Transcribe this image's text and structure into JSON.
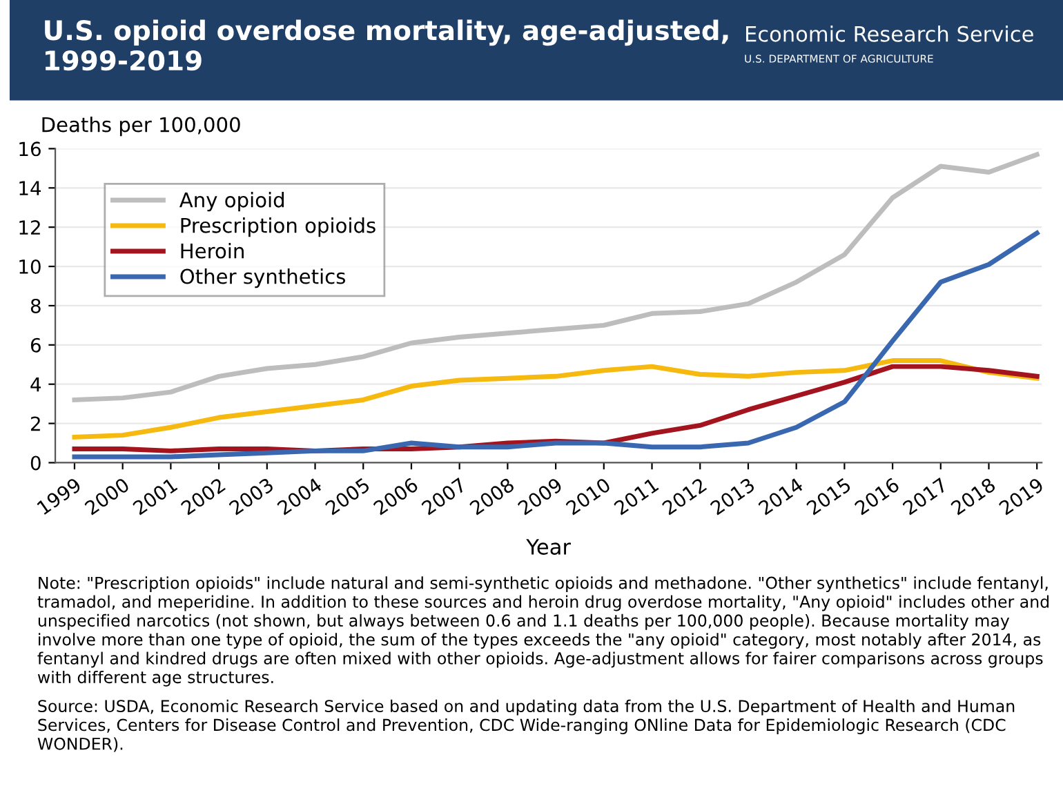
{
  "chart_data": {
    "type": "line",
    "title": "U.S. opioid overdose mortality, age-adjusted,\n1999-2019",
    "ylabel": "Deaths per 100,000",
    "xlabel": "Year",
    "categories": [
      "1999",
      "2000",
      "2001",
      "2002",
      "2003",
      "2004",
      "2005",
      "2006",
      "2007",
      "2008",
      "2009",
      "2010",
      "2011",
      "2012",
      "2013",
      "2014",
      "2015",
      "2016",
      "2017",
      "2018",
      "2019"
    ],
    "series": [
      {
        "name": "Any opioid",
        "color": "#bdbdbd",
        "values": [
          3.2,
          3.3,
          3.6,
          4.4,
          4.8,
          5.0,
          5.4,
          6.1,
          6.4,
          6.6,
          6.8,
          7.0,
          7.6,
          7.7,
          8.1,
          9.2,
          10.6,
          13.5,
          15.1,
          14.8,
          15.7
        ]
      },
      {
        "name": "Prescription opioids",
        "color": "#f5b90f",
        "values": [
          1.3,
          1.4,
          1.8,
          2.3,
          2.6,
          2.9,
          3.2,
          3.9,
          4.2,
          4.3,
          4.4,
          4.7,
          4.9,
          4.5,
          4.4,
          4.6,
          4.7,
          5.2,
          5.2,
          4.6,
          4.3
        ]
      },
      {
        "name": "Heroin",
        "color": "#a3141e",
        "values": [
          0.7,
          0.7,
          0.6,
          0.7,
          0.7,
          0.6,
          0.7,
          0.7,
          0.8,
          1.0,
          1.1,
          1.0,
          1.5,
          1.9,
          2.7,
          3.4,
          4.1,
          4.9,
          4.9,
          4.7,
          4.4
        ]
      },
      {
        "name": "Other synthetics",
        "color": "#3a68b0",
        "values": [
          0.3,
          0.3,
          0.3,
          0.4,
          0.5,
          0.6,
          0.6,
          1.0,
          0.8,
          0.8,
          1.0,
          1.0,
          0.8,
          0.8,
          1.0,
          1.8,
          3.1,
          6.2,
          9.2,
          10.1,
          11.7
        ]
      }
    ],
    "ylim": [
      0,
      16
    ],
    "yticks": [
      0,
      2,
      4,
      6,
      8,
      10,
      12,
      14,
      16
    ],
    "grid": "y",
    "legend": "top left",
    "marker": "none",
    "line_style": "solid",
    "annotations": [
      "Economic Research Service",
      "U.S. DEPARTMENT OF AGRICULTURE",
      "Note: \"Prescription opioids\" include natural and semi-synthetic opioids and methadone. \"Other synthetics\" include fentanyl, tramadol, and meperidine. In addition to these sources and heroin drug overdose mortality, \"Any opioid\" includes other and unspecified narcotics (not shown, but always between 0.6 and 1.1 deaths per 100,000 people). Because mortality may involve more than one type of opioid, the sum of the types exceeds the \"any opioid\" category, most notably after 2014, as fentanyl and kindred drugs are often mixed with other opioids. Age-adjustment allows for fairer comparisons across groups with different age structures.",
      "Source: USDA, Economic Research Service based on and updating data from the U.S. Department of Health and Human Services, Centers for Disease Control and Prevention, CDC Wide-ranging ONline Data for Epidemiologic Research (CDC WONDER)."
    ]
  }
}
